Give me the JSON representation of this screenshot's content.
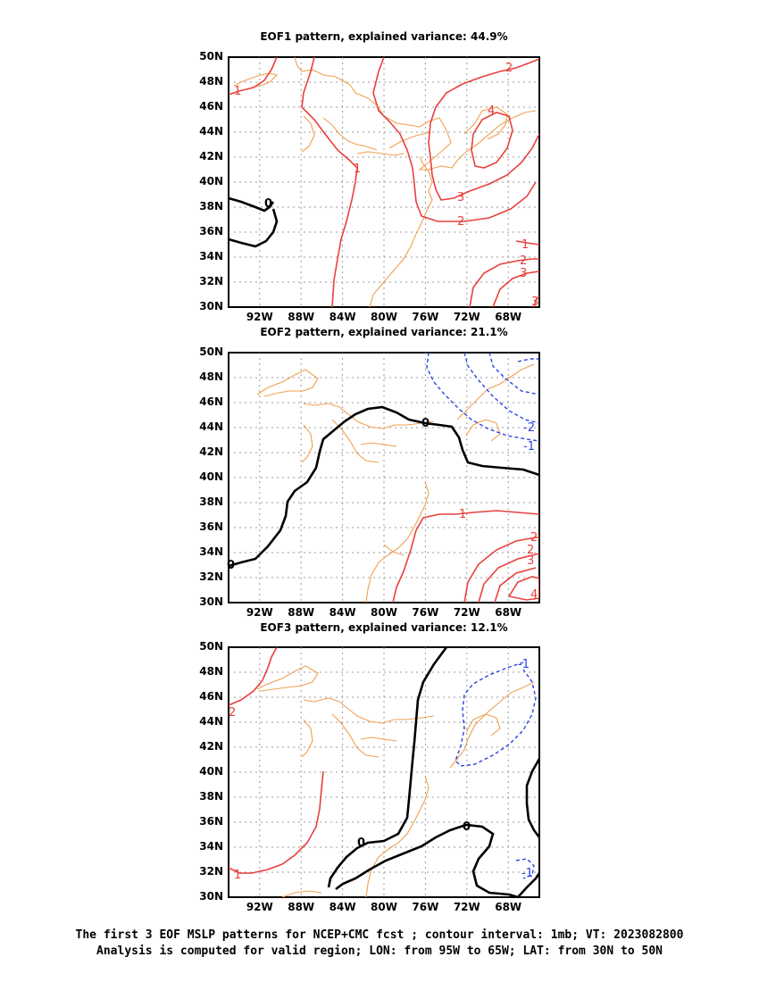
{
  "panels": [
    {
      "title": "EOF1 pattern, explained variance: 44.9%"
    },
    {
      "title": "EOF2 pattern, explained variance: 21.1%"
    },
    {
      "title": "EOF3 pattern, explained variance: 12.1%"
    }
  ],
  "axes": {
    "lat_labels": [
      "50N",
      "48N",
      "46N",
      "44N",
      "42N",
      "40N",
      "38N",
      "36N",
      "34N",
      "32N",
      "30N"
    ],
    "lon_labels": [
      "92W",
      "88W",
      "84W",
      "80W",
      "76W",
      "72W",
      "68W"
    ]
  },
  "caption": {
    "line1": "The first 3 EOF MSLP patterns for NCEP+CMC fcst ; contour interval: 1mb; VT: 2023082800",
    "line2": "Analysis is computed for valid region; LON: from 95W to 65W; LAT: from 30N to 50N"
  },
  "colors": {
    "positive": "#e8403c",
    "negative": "#2a45e6",
    "zero": "#000000",
    "coast": "#f0a050",
    "grid": "#999999"
  },
  "contour_labels": {
    "eof1": [
      "1",
      "1",
      "2",
      "3",
      "4",
      "0",
      "1",
      "2",
      "3",
      "2",
      "3"
    ],
    "eof2": [
      "0",
      "0",
      "1",
      "2",
      "-1",
      "-2",
      "2",
      "3",
      "4"
    ],
    "eof3": [
      "2",
      "1",
      "-1",
      "0",
      "0",
      "-1"
    ]
  }
}
